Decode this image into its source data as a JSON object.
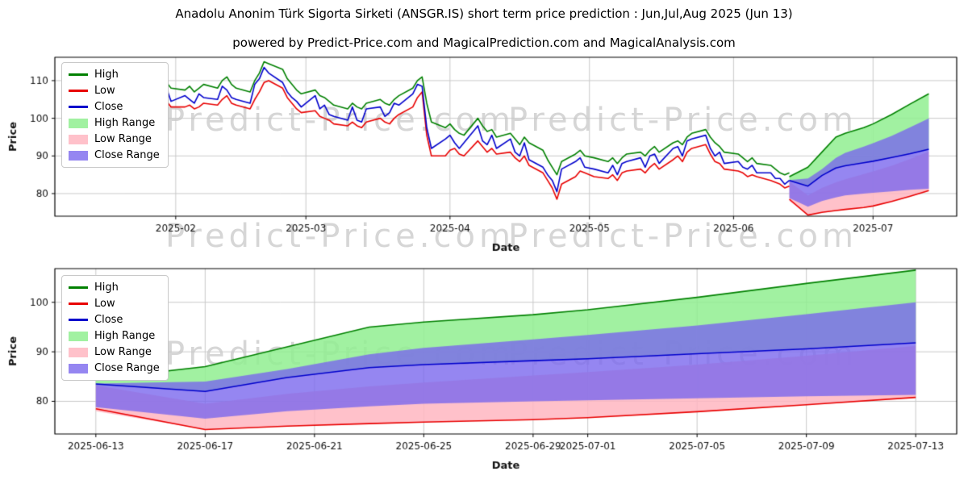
{
  "figure": {
    "title": "Anadolu Anonim Türk Sigorta Sirketi (ANSGR.IS) short term price prediction : Jun,Jul,Aug 2025 (Jun 13)",
    "subtitle": "powered by Predict-Price.com and MagicalPrediction.com and MagicalAnalysis.com",
    "watermark": "Predict-Price.com",
    "background": "#ffffff"
  },
  "colors": {
    "high": "#008000",
    "low": "#e80000",
    "close": "#0000cc",
    "high_range": "rgba(144,238,144,0.85)",
    "low_range": "rgba(255,182,193,0.85)",
    "close_range": "rgba(123,104,238,0.8)",
    "grid": "#c9c9c9",
    "axis": "#000000",
    "tick_text": "#111111",
    "watermark_color": "rgba(127,127,127,0.32)"
  },
  "legend": {
    "items": [
      {
        "key": "high",
        "label": "High",
        "type": "line",
        "color_ref": "high"
      },
      {
        "key": "low",
        "label": "Low",
        "type": "line",
        "color_ref": "low"
      },
      {
        "key": "close",
        "label": "Close",
        "type": "line",
        "color_ref": "close"
      },
      {
        "key": "high-range",
        "label": "High Range",
        "type": "patch",
        "color_ref": "high_range"
      },
      {
        "key": "low-range",
        "label": "Low Range",
        "type": "patch",
        "color_ref": "low_range"
      },
      {
        "key": "close-range",
        "label": "Close Range",
        "type": "patch",
        "color_ref": "close_range"
      }
    ]
  },
  "chart_data": [
    {
      "id": "price-history-with-forecast",
      "type": "line",
      "title": "",
      "xlabel": "Date",
      "ylabel": "Price",
      "grid": true,
      "legend_position": "upper left",
      "x_domain": [
        "2025-01-06",
        "2025-07-19"
      ],
      "y_domain": [
        74,
        116.2
      ],
      "y_ticks": [
        80,
        90,
        100,
        110
      ],
      "x_ticks": [
        {
          "pos": "2025-02-01",
          "label": "2025-02"
        },
        {
          "pos": "2025-03-01",
          "label": "2025-03"
        },
        {
          "pos": "2025-04-01",
          "label": "2025-04"
        },
        {
          "pos": "2025-05-01",
          "label": "2025-05"
        },
        {
          "pos": "2025-06-01",
          "label": "2025-06"
        },
        {
          "pos": "2025-07-01",
          "label": "2025-07"
        }
      ],
      "history_columns": [
        "date",
        "high",
        "low",
        "close"
      ],
      "history": [
        [
          "2025-01-08",
          110,
          106,
          108
        ],
        [
          "2025-01-10",
          112,
          107.5,
          111
        ],
        [
          "2025-01-13",
          112.5,
          108,
          110
        ],
        [
          "2025-01-14",
          110,
          105.5,
          107
        ],
        [
          "2025-01-15",
          111.5,
          107,
          110.5
        ],
        [
          "2025-01-16",
          110.5,
          106,
          107.5
        ],
        [
          "2025-01-17",
          111,
          106.5,
          110
        ],
        [
          "2025-01-20",
          112.5,
          108,
          111.5
        ],
        [
          "2025-01-21",
          111,
          106,
          107.5
        ],
        [
          "2025-01-22",
          109.5,
          104.5,
          106
        ],
        [
          "2025-01-23",
          111,
          106,
          110
        ],
        [
          "2025-01-24",
          110,
          105,
          106.5
        ],
        [
          "2025-01-27",
          109,
          104.5,
          107.5
        ],
        [
          "2025-01-28",
          110,
          105,
          106
        ],
        [
          "2025-01-29",
          108.5,
          103.5,
          105.5
        ],
        [
          "2025-01-30",
          109.5,
          104.5,
          108
        ],
        [
          "2025-01-31",
          108,
          103,
          104.5
        ],
        [
          "2025-02-03",
          107.5,
          103,
          106
        ],
        [
          "2025-02-04",
          108.5,
          103.5,
          105
        ],
        [
          "2025-02-05",
          107,
          102.5,
          104
        ],
        [
          "2025-02-06",
          108,
          103,
          106.5
        ],
        [
          "2025-02-07",
          109,
          104,
          105.5
        ],
        [
          "2025-02-10",
          108,
          103.5,
          105
        ],
        [
          "2025-02-11",
          110,
          105,
          108.5
        ],
        [
          "2025-02-12",
          111,
          106,
          107.5
        ],
        [
          "2025-02-13",
          109,
          104,
          105.5
        ],
        [
          "2025-02-14",
          108,
          103.5,
          105
        ],
        [
          "2025-02-17",
          107,
          102.5,
          104
        ],
        [
          "2025-02-18",
          110,
          105,
          109
        ],
        [
          "2025-02-19",
          112,
          107,
          110.5
        ],
        [
          "2025-02-20",
          115,
          109.5,
          113.5
        ],
        [
          "2025-02-21",
          114.5,
          110,
          112
        ],
        [
          "2025-02-24",
          113,
          108,
          109.5
        ],
        [
          "2025-02-25",
          110.5,
          105.5,
          107
        ],
        [
          "2025-02-26",
          109,
          104,
          105.5
        ],
        [
          "2025-02-27",
          107.5,
          102.5,
          104.5
        ],
        [
          "2025-02-28",
          106.5,
          101.5,
          103
        ],
        [
          "2025-03-03",
          107.5,
          102,
          106
        ],
        [
          "2025-03-04",
          106,
          100.5,
          102.5
        ],
        [
          "2025-03-05",
          105.5,
          100,
          103.5
        ],
        [
          "2025-03-06",
          104.5,
          99.5,
          101
        ],
        [
          "2025-03-07",
          103.5,
          98.5,
          100.5
        ],
        [
          "2025-03-10",
          102.5,
          98,
          99.5
        ],
        [
          "2025-03-11",
          104,
          99,
          103
        ],
        [
          "2025-03-12",
          103,
          98,
          99.5
        ],
        [
          "2025-03-13",
          102.5,
          97.5,
          99
        ],
        [
          "2025-03-14",
          104,
          99,
          102.5
        ],
        [
          "2025-03-17",
          105,
          100,
          103
        ],
        [
          "2025-03-18",
          104,
          99,
          100.5
        ],
        [
          "2025-03-19",
          103.5,
          98.5,
          101.5
        ],
        [
          "2025-03-20",
          105,
          100,
          104
        ],
        [
          "2025-03-21",
          106,
          101,
          103.5
        ],
        [
          "2025-03-24",
          108,
          103,
          106.5
        ],
        [
          "2025-03-25",
          110,
          105.5,
          109
        ],
        [
          "2025-03-26",
          111,
          107,
          108.5
        ],
        [
          "2025-03-27",
          104,
          95.5,
          97.5
        ],
        [
          "2025-03-28",
          99,
          90,
          92
        ],
        [
          "2025-03-31",
          97.5,
          90,
          94.5
        ],
        [
          "2025-04-01",
          98.5,
          91.5,
          95.5
        ],
        [
          "2025-04-02",
          97,
          92,
          93.5
        ],
        [
          "2025-04-03",
          96,
          90.5,
          92
        ],
        [
          "2025-04-04",
          95.5,
          90,
          93.5
        ],
        [
          "2025-04-07",
          100,
          94,
          98
        ],
        [
          "2025-04-08",
          98,
          92.5,
          94
        ],
        [
          "2025-04-09",
          96.5,
          91,
          93
        ],
        [
          "2025-04-10",
          97,
          92,
          95.5
        ],
        [
          "2025-04-11",
          95,
          90.5,
          92
        ],
        [
          "2025-04-14",
          96,
          91,
          94.5
        ],
        [
          "2025-04-15",
          94.5,
          89.5,
          91
        ],
        [
          "2025-04-16",
          93,
          88.5,
          90
        ],
        [
          "2025-04-17",
          95,
          90,
          93.5
        ],
        [
          "2025-04-18",
          93.5,
          87.5,
          89
        ],
        [
          "2025-04-21",
          91.5,
          85.5,
          87
        ],
        [
          "2025-04-22",
          89,
          83.5,
          85
        ],
        [
          "2025-04-23",
          87,
          81.5,
          83.5
        ],
        [
          "2025-04-24",
          85,
          78.5,
          80.5
        ],
        [
          "2025-04-25",
          88.5,
          82.5,
          86.5
        ],
        [
          "2025-04-28",
          90.5,
          84.5,
          88.5
        ],
        [
          "2025-04-29",
          91.5,
          86,
          89.5
        ],
        [
          "2025-04-30",
          90,
          85.5,
          87
        ],
        [
          "2025-05-02",
          89.5,
          84.5,
          86.5
        ],
        [
          "2025-05-05",
          88.5,
          84,
          85.5
        ],
        [
          "2025-05-06",
          89.5,
          85,
          87.5
        ],
        [
          "2025-05-07",
          88,
          83.5,
          85
        ],
        [
          "2025-05-08",
          89.5,
          85.5,
          88
        ],
        [
          "2025-05-09",
          90.5,
          86,
          88.5
        ],
        [
          "2025-05-12",
          91,
          86.5,
          89.5
        ],
        [
          "2025-05-13",
          90,
          85.5,
          87
        ],
        [
          "2025-05-14",
          91.5,
          87,
          90
        ],
        [
          "2025-05-15",
          92.5,
          88,
          90.5
        ],
        [
          "2025-05-16",
          91,
          86.5,
          88
        ],
        [
          "2025-05-19",
          93.5,
          89,
          92
        ],
        [
          "2025-05-20",
          94,
          90,
          92.5
        ],
        [
          "2025-05-21",
          93,
          88.5,
          90
        ],
        [
          "2025-05-22",
          95,
          91,
          94
        ],
        [
          "2025-05-23",
          96,
          92,
          94.5
        ],
        [
          "2025-05-26",
          97,
          93,
          95.5
        ],
        [
          "2025-05-27",
          95,
          90.5,
          92
        ],
        [
          "2025-05-28",
          93.5,
          88.5,
          90
        ],
        [
          "2025-05-29",
          92.5,
          88,
          91
        ],
        [
          "2025-05-30",
          91,
          86.5,
          88
        ],
        [
          "2025-06-02",
          90.5,
          86,
          88.5
        ],
        [
          "2025-06-03",
          89.5,
          85.5,
          87
        ],
        [
          "2025-06-04",
          88.5,
          84.5,
          86.5
        ],
        [
          "2025-06-05",
          89.5,
          85,
          87.5
        ],
        [
          "2025-06-06",
          88,
          84.5,
          85.5
        ],
        [
          "2025-06-09",
          87.5,
          83.5,
          85.5
        ],
        [
          "2025-06-10",
          86.5,
          83,
          84
        ],
        [
          "2025-06-11",
          85.5,
          82.5,
          84
        ],
        [
          "2025-06-12",
          85,
          81.5,
          82.5
        ],
        [
          "2025-06-13",
          85.5,
          82,
          83.5
        ]
      ],
      "prediction_columns": [
        "date",
        "high",
        "low",
        "close",
        "high_range_low",
        "high_range_high",
        "low_range_low",
        "low_range_high",
        "close_range_low",
        "close_range_high"
      ],
      "prediction": [
        [
          "2025-06-13",
          84.5,
          78.5,
          83.5,
          83.2,
          84.5,
          78,
          83.2,
          78.8,
          83.6
        ],
        [
          "2025-06-17",
          87,
          74.3,
          82,
          82,
          87,
          74.3,
          79.5,
          76.5,
          84
        ],
        [
          "2025-06-20",
          91,
          75,
          84.8,
          84.8,
          91,
          75,
          81.5,
          78,
          86.5
        ],
        [
          "2025-06-23",
          95,
          75.5,
          86.8,
          86.8,
          95,
          75.5,
          83,
          79,
          89.5
        ],
        [
          "2025-06-25",
          96,
          75.8,
          87.4,
          87.4,
          96,
          75.8,
          83.8,
          79.5,
          90.8
        ],
        [
          "2025-06-29",
          97.5,
          76.3,
          88.2,
          88.2,
          97.5,
          76.3,
          85.2,
          80,
          92.5
        ],
        [
          "2025-07-01",
          98.5,
          76.7,
          88.6,
          88.6,
          98.5,
          76.7,
          85.9,
          80.2,
          93.4
        ],
        [
          "2025-07-05",
          101,
          77.9,
          89.6,
          89.6,
          101,
          77.9,
          87.4,
          80.6,
          95.3
        ],
        [
          "2025-07-09",
          103.8,
          79.3,
          90.6,
          90.6,
          103.8,
          79.3,
          89.2,
          81,
          97.6
        ],
        [
          "2025-07-13",
          106.5,
          80.8,
          91.8,
          91.8,
          106.5,
          80.8,
          91.2,
          81.3,
          100
        ]
      ]
    },
    {
      "id": "forecast-detail",
      "type": "line",
      "title": "",
      "xlabel": "Date",
      "ylabel": "Price",
      "grid": true,
      "legend_position": "upper left",
      "x_domain": [
        "2025-06-11T12:00:00Z",
        "2025-07-14T12:00:00Z"
      ],
      "y_domain": [
        73.4,
        106.8
      ],
      "y_ticks": [
        80,
        90,
        100
      ],
      "x_ticks": [
        {
          "pos": "2025-06-13",
          "label": "2025-06-13"
        },
        {
          "pos": "2025-06-17",
          "label": "2025-06-17"
        },
        {
          "pos": "2025-06-21",
          "label": "2025-06-21"
        },
        {
          "pos": "2025-06-25",
          "label": "2025-06-25"
        },
        {
          "pos": "2025-06-29",
          "label": "2025-06-29"
        },
        {
          "pos": "2025-07-01",
          "label": "2025-07-01"
        },
        {
          "pos": "2025-07-05",
          "label": "2025-07-05"
        },
        {
          "pos": "2025-07-09",
          "label": "2025-07-09"
        },
        {
          "pos": "2025-07-13",
          "label": "2025-07-13"
        }
      ],
      "prediction_columns": [
        "date",
        "high",
        "low",
        "close",
        "high_range_low",
        "high_range_high",
        "low_range_low",
        "low_range_high",
        "close_range_low",
        "close_range_high"
      ],
      "prediction": [
        [
          "2025-06-13",
          84.5,
          78.5,
          83.5,
          83.2,
          84.5,
          78,
          83.2,
          78.8,
          83.6
        ],
        [
          "2025-06-17",
          87,
          74.3,
          82,
          82,
          87,
          74.3,
          79.5,
          76.5,
          84
        ],
        [
          "2025-06-20",
          91,
          75,
          84.8,
          84.8,
          91,
          75,
          81.5,
          78,
          86.5
        ],
        [
          "2025-06-23",
          95,
          75.5,
          86.8,
          86.8,
          95,
          75.5,
          83,
          79,
          89.5
        ],
        [
          "2025-06-25",
          96,
          75.8,
          87.4,
          87.4,
          96,
          75.8,
          83.8,
          79.5,
          90.8
        ],
        [
          "2025-06-29",
          97.5,
          76.3,
          88.2,
          88.2,
          97.5,
          76.3,
          85.2,
          80,
          92.5
        ],
        [
          "2025-07-01",
          98.5,
          76.7,
          88.6,
          88.6,
          98.5,
          76.7,
          85.9,
          80.2,
          93.4
        ],
        [
          "2025-07-05",
          101,
          77.9,
          89.6,
          89.6,
          101,
          77.9,
          87.4,
          80.6,
          95.3
        ],
        [
          "2025-07-09",
          103.8,
          79.3,
          90.6,
          90.6,
          103.8,
          79.3,
          89.2,
          81,
          97.6
        ],
        [
          "2025-07-13",
          106.5,
          80.8,
          91.8,
          91.8,
          106.5,
          80.8,
          91.2,
          81.3,
          100
        ]
      ]
    }
  ]
}
